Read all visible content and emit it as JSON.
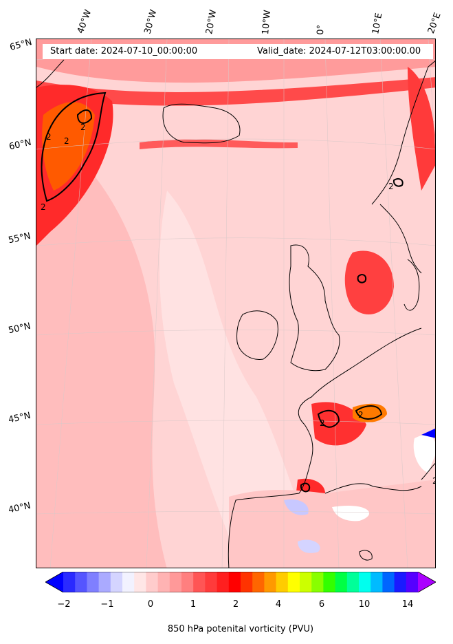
{
  "header": {
    "start_date": "Start date: 2024-07-10_00:00:00",
    "valid_date": "Valid_date: 2024-07-12T03:00:00.00"
  },
  "lon_labels": [
    "40°W",
    "30°W",
    "20°W",
    "10°W",
    "0°",
    "10°E",
    "20°E"
  ],
  "lat_labels": [
    "65°N",
    "60°N",
    "55°N",
    "50°N",
    "45°N",
    "40°N"
  ],
  "contour_labels": [
    "2",
    "2",
    "2",
    "2",
    "2",
    "2",
    "2",
    "2"
  ],
  "colorbar": {
    "ticks": [
      "−2",
      "−1",
      "0",
      "1",
      "2",
      "4",
      "6",
      "10",
      "14"
    ],
    "label": "850 hPa potenital vorticity (PVU)",
    "colors": [
      "#0000ff",
      "#2a2aff",
      "#5555ff",
      "#7f7fff",
      "#aaaaff",
      "#d4d4ff",
      "#f2f2ff",
      "#ffe6e6",
      "#ffcccc",
      "#ffb3b3",
      "#ff9999",
      "#ff7f7f",
      "#ff5555",
      "#ff3b3b",
      "#ff1f1f",
      "#ff0000",
      "#ff3300",
      "#ff6600",
      "#ff9900",
      "#ffcc00",
      "#ffff00",
      "#ccff00",
      "#88ff00",
      "#33ff00",
      "#00ff44",
      "#00ff99",
      "#00ffee",
      "#00bbff",
      "#0066ff",
      "#1a1aff",
      "#5500ff",
      "#aa00ff"
    ]
  }
}
